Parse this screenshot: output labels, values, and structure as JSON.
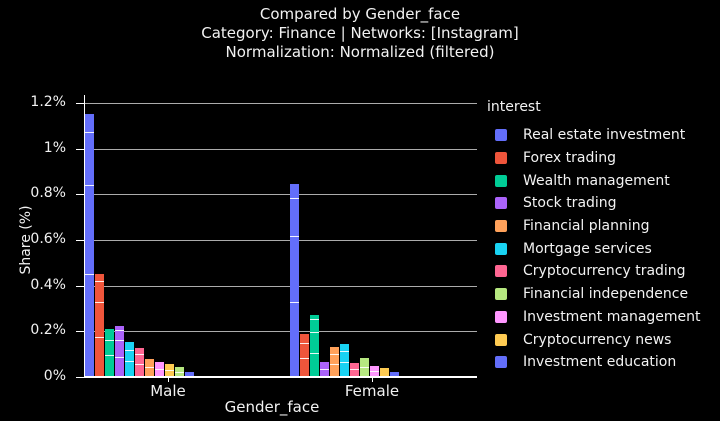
{
  "title": {
    "line1": "Compared by Gender_face",
    "line2": "Category: Finance | Networks: [Instagram]",
    "line3": "Normalization: Normalized (filtered)"
  },
  "axes": {
    "y_label": "Share (%)",
    "x_label": "Gender_face",
    "y_tick_labels": [
      "0%",
      "0.2%",
      "0.4%",
      "0.6%",
      "0.8%",
      "1%",
      "1.2%"
    ],
    "y_tick_values": [
      0,
      0.2,
      0.4,
      0.6,
      0.8,
      1.0,
      1.2
    ],
    "x_categories": [
      "Male",
      "Female"
    ]
  },
  "legend": {
    "title": "interest",
    "items": [
      {
        "label": "Real estate investment",
        "color": "#636EFA"
      },
      {
        "label": "Forex trading",
        "color": "#EF553B"
      },
      {
        "label": "Wealth management",
        "color": "#00CC96"
      },
      {
        "label": "Stock trading",
        "color": "#AB63FA"
      },
      {
        "label": "Financial planning",
        "color": "#FFA15A"
      },
      {
        "label": "Mortgage services",
        "color": "#19D3F3"
      },
      {
        "label": "Cryptocurrency trading",
        "color": "#FF6692"
      },
      {
        "label": "Financial independence",
        "color": "#B6E880"
      },
      {
        "label": "Investment management",
        "color": "#FF97FF"
      },
      {
        "label": "Cryptocurrency news",
        "color": "#FECB52"
      },
      {
        "label": "Investment education",
        "color": "#636EFA"
      }
    ]
  },
  "chart_data": {
    "type": "bar",
    "title": "Compared by Gender_face | Category: Finance | Networks: [Instagram] | Normalization: Normalized (filtered)",
    "xlabel": "Gender_face",
    "ylabel": "Share (%)",
    "ylim": [
      0,
      1.2
    ],
    "grid": true,
    "legend_position": "right",
    "categories": [
      "Male",
      "Female"
    ],
    "series": [
      {
        "name": "Real estate investment",
        "color": "#636EFA",
        "values": [
          1.15,
          0.845
        ]
      },
      {
        "name": "Forex trading",
        "color": "#EF553B",
        "values": [
          0.45,
          0.19
        ]
      },
      {
        "name": "Wealth management",
        "color": "#00CC96",
        "values": [
          0.21,
          0.27
        ]
      },
      {
        "name": "Stock trading",
        "color": "#AB63FA",
        "values": [
          0.225,
          0.065
        ]
      },
      {
        "name": "Financial planning",
        "color": "#FFA15A",
        "values": [
          0.08,
          0.13
        ]
      },
      {
        "name": "Mortgage services",
        "color": "#19D3F3",
        "values": [
          0.155,
          0.145
        ]
      },
      {
        "name": "Cryptocurrency trading",
        "color": "#FF6692",
        "values": [
          0.125,
          0.06
        ]
      },
      {
        "name": "Financial independence",
        "color": "#B6E880",
        "values": [
          0.045,
          0.085
        ]
      },
      {
        "name": "Investment management",
        "color": "#FF97FF",
        "values": [
          0.065,
          0.05
        ]
      },
      {
        "name": "Cryptocurrency news",
        "color": "#FECB52",
        "values": [
          0.055,
          0.04
        ]
      },
      {
        "name": "Investment education",
        "color": "#636EFA",
        "values": [
          0.02,
          0.02
        ]
      }
    ],
    "bar_order": {
      "Male": [
        "Real estate investment",
        "Forex trading",
        "Wealth management",
        "Stock trading",
        "Mortgage services",
        "Cryptocurrency trading",
        "Financial planning",
        "Investment management",
        "Cryptocurrency news",
        "Financial independence",
        "Investment education"
      ],
      "Female": [
        "Real estate investment",
        "Forex trading",
        "Wealth management",
        "Stock trading",
        "Financial planning",
        "Mortgage services",
        "Cryptocurrency trading",
        "Financial independence",
        "Investment management",
        "Cryptocurrency news",
        "Investment education"
      ]
    }
  }
}
